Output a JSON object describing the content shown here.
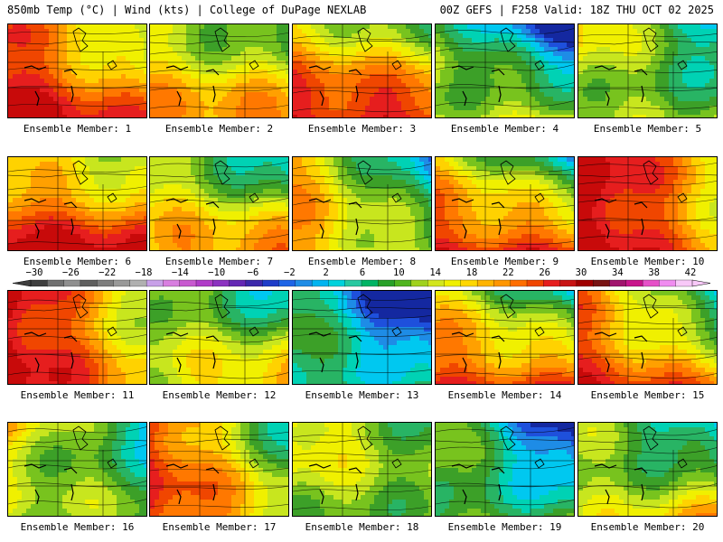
{
  "header": {
    "left": "850mb Temp (°C) | Wind (kts) | College of DuPage NEXLAB",
    "right": "00Z GEFS | F258 Valid: 18Z THU OCT 02 2025"
  },
  "caption_prefix": "Ensemble Member:",
  "members": [
    {
      "id": "1",
      "label": "Ensemble Member: 1",
      "warmth": 0.8,
      "cold_nw": 0.35,
      "gradient": "sw"
    },
    {
      "id": "2",
      "label": "Ensemble Member: 2",
      "warmth": 0.55,
      "cold_nw": 0.2,
      "gradient": "s"
    },
    {
      "id": "3",
      "label": "Ensemble Member: 3",
      "warmth": 0.75,
      "cold_nw": 0.3,
      "gradient": "s"
    },
    {
      "id": "4",
      "label": "Ensemble Member: 4",
      "warmth": 0.4,
      "cold_nw": 0.85,
      "gradient": "ne"
    },
    {
      "id": "5",
      "label": "Ensemble Member: 5",
      "warmth": 0.45,
      "cold_nw": 0.65,
      "gradient": "n"
    },
    {
      "id": "6",
      "label": "Ensemble Member: 6",
      "warmth": 0.78,
      "cold_nw": 0.3,
      "gradient": "s"
    },
    {
      "id": "7",
      "label": "Ensemble Member: 7",
      "warmth": 0.62,
      "cold_nw": 0.7,
      "gradient": "ne"
    },
    {
      "id": "8",
      "label": "Ensemble Member: 8",
      "warmth": 0.5,
      "cold_nw": 0.5,
      "gradient": "w"
    },
    {
      "id": "9",
      "label": "Ensemble Member: 9",
      "warmth": 0.72,
      "cold_nw": 0.55,
      "gradient": "s"
    },
    {
      "id": "10",
      "label": "Ensemble Member: 10",
      "warmth": 0.85,
      "cold_nw": 0.15,
      "gradient": "w"
    },
    {
      "id": "11",
      "label": "Ensemble Member: 11",
      "warmth": 0.8,
      "cold_nw": 0.25,
      "gradient": "w"
    },
    {
      "id": "12",
      "label": "Ensemble Member: 12",
      "warmth": 0.55,
      "cold_nw": 0.75,
      "gradient": "e"
    },
    {
      "id": "13",
      "label": "Ensemble Member: 13",
      "warmth": 0.2,
      "cold_nw": 0.9,
      "gradient": "n"
    },
    {
      "id": "14",
      "label": "Ensemble Member: 14",
      "warmth": 0.68,
      "cold_nw": 0.55,
      "gradient": "s"
    },
    {
      "id": "15",
      "label": "Ensemble Member: 15",
      "warmth": 0.7,
      "cold_nw": 0.55,
      "gradient": "sw"
    },
    {
      "id": "16",
      "label": "Ensemble Member: 16",
      "warmth": 0.45,
      "cold_nw": 0.6,
      "gradient": "n"
    },
    {
      "id": "17",
      "label": "Ensemble Member: 17",
      "warmth": 0.7,
      "cold_nw": 0.45,
      "gradient": "w"
    },
    {
      "id": "18",
      "label": "Ensemble Member: 18",
      "warmth": 0.45,
      "cold_nw": 0.4,
      "gradient": "n"
    },
    {
      "id": "19",
      "label": "Ensemble Member: 19",
      "warmth": 0.3,
      "cold_nw": 0.85,
      "gradient": "n"
    },
    {
      "id": "20",
      "label": "Ensemble Member: 20",
      "warmth": 0.5,
      "cold_nw": 0.8,
      "gradient": "e"
    }
  ],
  "colorbar": {
    "unit": "°C",
    "labels": [
      "-30",
      "-26",
      "-22",
      "-18",
      "-14",
      "-10",
      "-6",
      "-2",
      "2",
      "6",
      "10",
      "14",
      "18",
      "22",
      "26",
      "30",
      "34",
      "38",
      "42"
    ],
    "colors": [
      "#3e3e3e",
      "#707070",
      "#8f8f8f",
      "#5f5f5f",
      "#7d7d7d",
      "#999999",
      "#b0b0b0",
      "#c8a0e8",
      "#d87ee0",
      "#c85ad0",
      "#b03cc8",
      "#8c32c0",
      "#6428b4",
      "#3c28aa",
      "#1e3cc8",
      "#1e64e6",
      "#1e8ce6",
      "#00b4f0",
      "#00d2dc",
      "#28c8a0",
      "#00b464",
      "#28a028",
      "#50b41e",
      "#a0d21e",
      "#d2e61e",
      "#f0f000",
      "#ffd700",
      "#ffb400",
      "#ff9600",
      "#ff6e00",
      "#f04600",
      "#e61e1e",
      "#c81414",
      "#a00000",
      "#781414",
      "#a0146e",
      "#c8148c",
      "#e650c8",
      "#f08cf0",
      "#f8c8f8"
    ]
  }
}
